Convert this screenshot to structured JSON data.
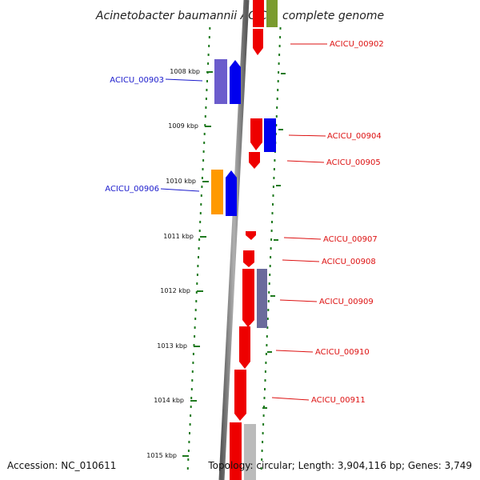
{
  "title": "Acinetobacter baumannii ACICU, complete genome",
  "footer": {
    "accession": "Accession: NC_010611",
    "topology": "Topology: circular; Length: 3,904,116 bp; Genes: 3,749"
  },
  "colors": {
    "backbone": "#888888",
    "ruler_ticks": "#1f7a1f",
    "forward_labels": "#1a1acc",
    "reverse_labels": "#dd1111",
    "gene_red": "#ee0000",
    "gene_blue": "#0000ee",
    "gene_slate": "#6b5ccc",
    "gene_orange": "#ff9900",
    "gene_olive": "#7a9b2e",
    "gene_grey": "#bbbbbb"
  },
  "ruler": {
    "unit": "kbp",
    "labels": [
      "1008 kbp",
      "1009 kbp",
      "1010 kbp",
      "1011 kbp",
      "1012 kbp",
      "1013 kbp",
      "1014 kbp",
      "1015 kbp"
    ]
  },
  "gene_labels": {
    "left": [
      "ACICU_00903",
      "ACICU_00906"
    ],
    "right": [
      "ACICU_00902",
      "ACICU_00904",
      "ACICU_00905",
      "ACICU_00907",
      "ACICU_00908",
      "ACICU_00909",
      "ACICU_00910",
      "ACICU_00911"
    ]
  }
}
